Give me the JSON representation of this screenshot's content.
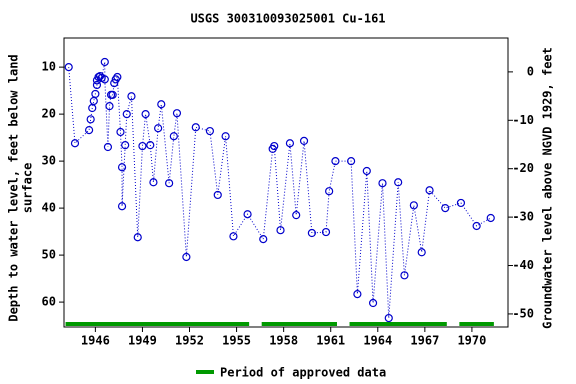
{
  "chart_data": {
    "type": "line",
    "title": "USGS 300310093025001 Cu-161",
    "ylabel": [
      "Depth to water level, feet below land",
      "surface"
    ],
    "y2label": "Groundwater level above NGVD 1929, feet",
    "xlim": [
      1944.0,
      1972.3
    ],
    "xticks": [
      1946,
      1949,
      1952,
      1955,
      1958,
      1961,
      1964,
      1967,
      1970
    ],
    "ylim": [
      65.3,
      3.8
    ],
    "yticks": [
      10,
      20,
      30,
      40,
      50,
      60
    ],
    "y2lim": [
      -52.7,
      7.0
    ],
    "y2ticks": [
      0,
      -10,
      -20,
      -30,
      -40,
      -50
    ],
    "series": [
      {
        "color": "#0000cc",
        "x": [
          1944.3,
          1944.7,
          1945.6,
          1945.7,
          1945.8,
          1945.9,
          1946.0,
          1946.1,
          1946.1,
          1946.2,
          1946.3,
          1946.4,
          1946.6,
          1946.6,
          1946.8,
          1946.9,
          1947.0,
          1947.1,
          1947.2,
          1947.3,
          1947.4,
          1947.6,
          1947.7,
          1947.7,
          1947.9,
          1948.0,
          1948.3,
          1948.7,
          1949.0,
          1949.2,
          1949.5,
          1949.7,
          1950.0,
          1950.2,
          1950.7,
          1951.0,
          1951.2,
          1951.8,
          1952.4,
          1953.3,
          1953.8,
          1954.3,
          1954.8,
          1955.7,
          1956.7,
          1957.3,
          1957.4,
          1957.8,
          1958.4,
          1958.8,
          1959.3,
          1959.8,
          1960.7,
          1960.9,
          1961.3,
          1962.3,
          1962.7,
          1963.3,
          1963.7,
          1964.3,
          1964.7,
          1965.3,
          1965.7,
          1966.3,
          1966.8,
          1967.3,
          1968.3,
          1969.3,
          1970.3,
          1971.2
        ],
        "values": [
          10.0,
          26.2,
          23.4,
          21.1,
          18.7,
          17.2,
          15.7,
          13.8,
          12.8,
          12.1,
          11.9,
          12.3,
          8.9,
          12.6,
          27.0,
          18.3,
          15.9,
          15.9,
          13.4,
          12.6,
          12.1,
          23.8,
          31.3,
          39.6,
          26.6,
          20.0,
          16.2,
          46.2,
          26.8,
          20.0,
          26.6,
          34.5,
          23.0,
          17.9,
          34.7,
          24.7,
          19.8,
          50.4,
          22.8,
          23.6,
          37.2,
          24.7,
          46.0,
          41.3,
          46.6,
          27.4,
          26.8,
          44.7,
          26.2,
          41.5,
          25.7,
          45.3,
          45.1,
          36.4,
          30.0,
          30.0,
          58.3,
          32.1,
          60.2,
          34.7,
          63.4,
          34.5,
          54.3,
          39.4,
          49.4,
          36.2,
          40.0,
          38.9,
          43.8,
          42.1
        ]
      }
    ],
    "approved_periods": [
      [
        1944.1,
        1955.8
      ],
      [
        1956.6,
        1961.4
      ],
      [
        1962.2,
        1968.4
      ],
      [
        1969.2,
        1971.4
      ]
    ],
    "approved_color": "#009900",
    "approved_label": "Period of approved data"
  }
}
